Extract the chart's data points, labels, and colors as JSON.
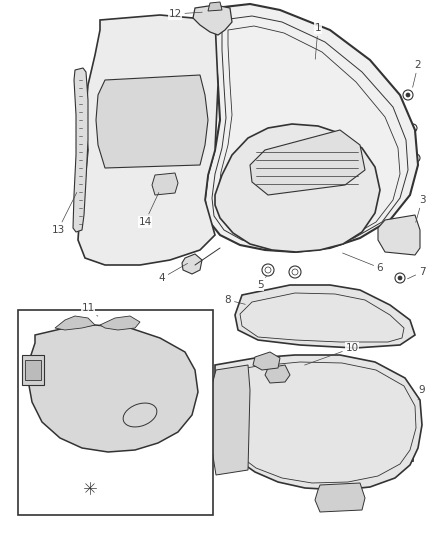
{
  "bg_color": "#ffffff",
  "line_color": "#333333",
  "label_color": "#444444",
  "fig_width": 4.38,
  "fig_height": 5.33,
  "dpi": 100,
  "annotation_fontsize": 7.5
}
